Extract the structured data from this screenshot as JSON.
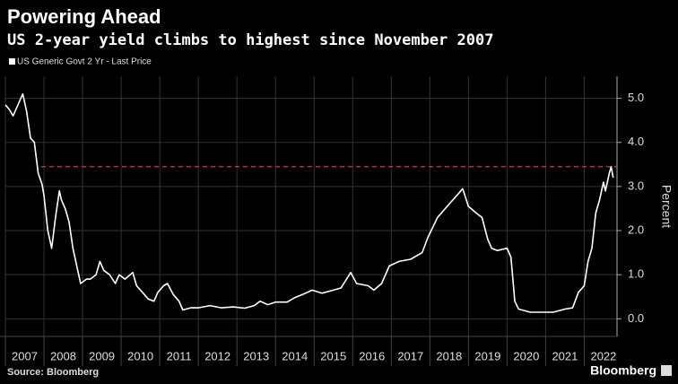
{
  "chart_data": {
    "type": "line",
    "title": "Powering Ahead",
    "subtitle": "US 2-year yield climbs to highest since November 2007",
    "y_axis_label": "Percent",
    "source": "Source: Bloomberg",
    "brand": "Bloomberg",
    "x": [
      2007.0,
      2007.1,
      2007.2,
      2007.3,
      2007.4,
      2007.45,
      2007.55,
      2007.65,
      2007.75,
      2007.85,
      2007.95,
      2008.0,
      2008.1,
      2008.2,
      2008.3,
      2008.4,
      2008.45,
      2008.55,
      2008.65,
      2008.75,
      2008.85,
      2008.95,
      2009.1,
      2009.2,
      2009.35,
      2009.45,
      2009.55,
      2009.7,
      2009.85,
      2009.95,
      2010.1,
      2010.3,
      2010.4,
      2010.55,
      2010.7,
      2010.85,
      2010.95,
      2011.1,
      2011.2,
      2011.35,
      2011.5,
      2011.6,
      2011.8,
      2012.0,
      2012.3,
      2012.6,
      2012.9,
      2013.2,
      2013.45,
      2013.6,
      2013.8,
      2014.0,
      2014.3,
      2014.5,
      2014.7,
      2014.95,
      2015.2,
      2015.5,
      2015.7,
      2015.95,
      2016.1,
      2016.4,
      2016.55,
      2016.75,
      2016.95,
      2017.2,
      2017.5,
      2017.8,
      2017.95,
      2018.2,
      2018.5,
      2018.75,
      2018.85,
      2019.0,
      2019.2,
      2019.35,
      2019.5,
      2019.6,
      2019.75,
      2020.0,
      2020.1,
      2020.2,
      2020.3,
      2020.6,
      2020.9,
      2021.2,
      2021.5,
      2021.7,
      2021.85,
      2022.0,
      2022.1,
      2022.2,
      2022.3,
      2022.4,
      2022.5,
      2022.55,
      2022.65,
      2022.7,
      2022.75
    ],
    "series": [
      {
        "name": "US Generic Govt 2 Yr - Last Price",
        "color": "#ffffff",
        "values": [
          4.85,
          4.75,
          4.6,
          4.8,
          5.0,
          5.1,
          4.7,
          4.1,
          4.0,
          3.3,
          3.05,
          2.8,
          2.0,
          1.6,
          2.3,
          2.9,
          2.7,
          2.5,
          2.2,
          1.6,
          1.2,
          0.8,
          0.9,
          0.9,
          1.0,
          1.3,
          1.1,
          1.0,
          0.8,
          1.0,
          0.9,
          1.05,
          0.75,
          0.6,
          0.45,
          0.4,
          0.6,
          0.75,
          0.8,
          0.55,
          0.4,
          0.2,
          0.25,
          0.25,
          0.3,
          0.25,
          0.27,
          0.24,
          0.3,
          0.4,
          0.32,
          0.38,
          0.38,
          0.48,
          0.55,
          0.65,
          0.58,
          0.65,
          0.7,
          1.05,
          0.8,
          0.75,
          0.65,
          0.8,
          1.2,
          1.3,
          1.35,
          1.5,
          1.85,
          2.3,
          2.6,
          2.85,
          2.95,
          2.55,
          2.4,
          2.3,
          1.8,
          1.6,
          1.55,
          1.6,
          1.4,
          0.4,
          0.22,
          0.15,
          0.15,
          0.15,
          0.22,
          0.25,
          0.6,
          0.75,
          1.3,
          1.6,
          2.4,
          2.7,
          3.1,
          2.9,
          3.3,
          3.45,
          3.2
        ]
      }
    ],
    "reference_line": {
      "value": 3.45,
      "color": "#e0353a"
    },
    "xlim": [
      2007,
      2022.85
    ],
    "xticks": [
      2007,
      2008,
      2009,
      2010,
      2011,
      2012,
      2013,
      2014,
      2015,
      2016,
      2017,
      2018,
      2019,
      2020,
      2021,
      2022
    ],
    "ylim": [
      -0.4,
      5.5
    ],
    "yticks": [
      {
        "value": 0,
        "label": "0.0"
      },
      {
        "value": 1,
        "label": "1.0"
      },
      {
        "value": 2,
        "label": "2.0"
      },
      {
        "value": 3,
        "label": "3.0"
      },
      {
        "value": 4,
        "label": "4.0"
      },
      {
        "value": 5,
        "label": "5.0"
      }
    ],
    "grid": true
  }
}
